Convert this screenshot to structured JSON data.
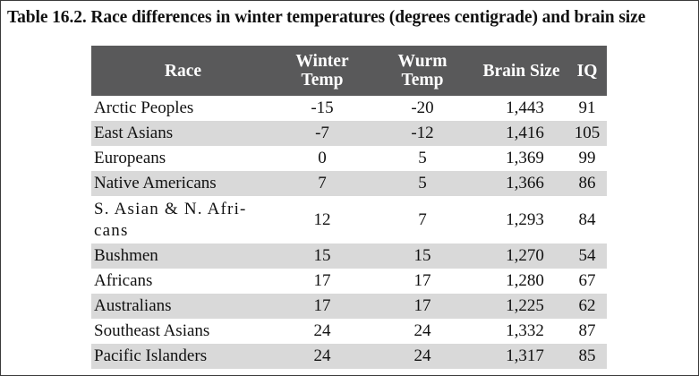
{
  "caption": "Table 16.2. Race differences in winter temperatures (degrees centigrade) and brain size",
  "table": {
    "headers": {
      "race": "Race",
      "winter_temp": [
        "Winter",
        "Temp"
      ],
      "wurm_temp": [
        "Wurm",
        "Temp"
      ],
      "brain_size": "Brain Size",
      "iq": "IQ"
    },
    "rows": [
      {
        "race": "Arctic Peoples",
        "winter_temp": "-15",
        "wurm_temp": "-20",
        "brain_size": "1,443",
        "iq": "91"
      },
      {
        "race": "East Asians",
        "winter_temp": "-7",
        "wurm_temp": "-12",
        "brain_size": "1,416",
        "iq": "105"
      },
      {
        "race": "Europeans",
        "winter_temp": "0",
        "wurm_temp": "5",
        "brain_size": "1,369",
        "iq": "99"
      },
      {
        "race": "Native Americans",
        "winter_temp": "7",
        "wurm_temp": "5",
        "brain_size": "1,366",
        "iq": "86"
      },
      {
        "race": [
          "S. Asian & N. Afri-",
          "cans"
        ],
        "winter_temp": "12",
        "wurm_temp": "7",
        "brain_size": "1,293",
        "iq": "84"
      },
      {
        "race": "Bushmen",
        "winter_temp": "15",
        "wurm_temp": "15",
        "brain_size": "1,270",
        "iq": "54"
      },
      {
        "race": "Africans",
        "winter_temp": "17",
        "wurm_temp": "17",
        "brain_size": "1,280",
        "iq": "67"
      },
      {
        "race": "Australians",
        "winter_temp": "17",
        "wurm_temp": "17",
        "brain_size": "1,225",
        "iq": "62"
      },
      {
        "race": "Southeast Asians",
        "winter_temp": "24",
        "wurm_temp": "24",
        "brain_size": "1,332",
        "iq": "87"
      },
      {
        "race": "Pacific Islanders",
        "winter_temp": "24",
        "wurm_temp": "24",
        "brain_size": "1,317",
        "iq": "85"
      }
    ]
  },
  "colors": {
    "header_bg": "#59595a",
    "header_text": "#ffffff",
    "shaded_row": "#d9d9d9",
    "border": "#3a3a3a"
  }
}
